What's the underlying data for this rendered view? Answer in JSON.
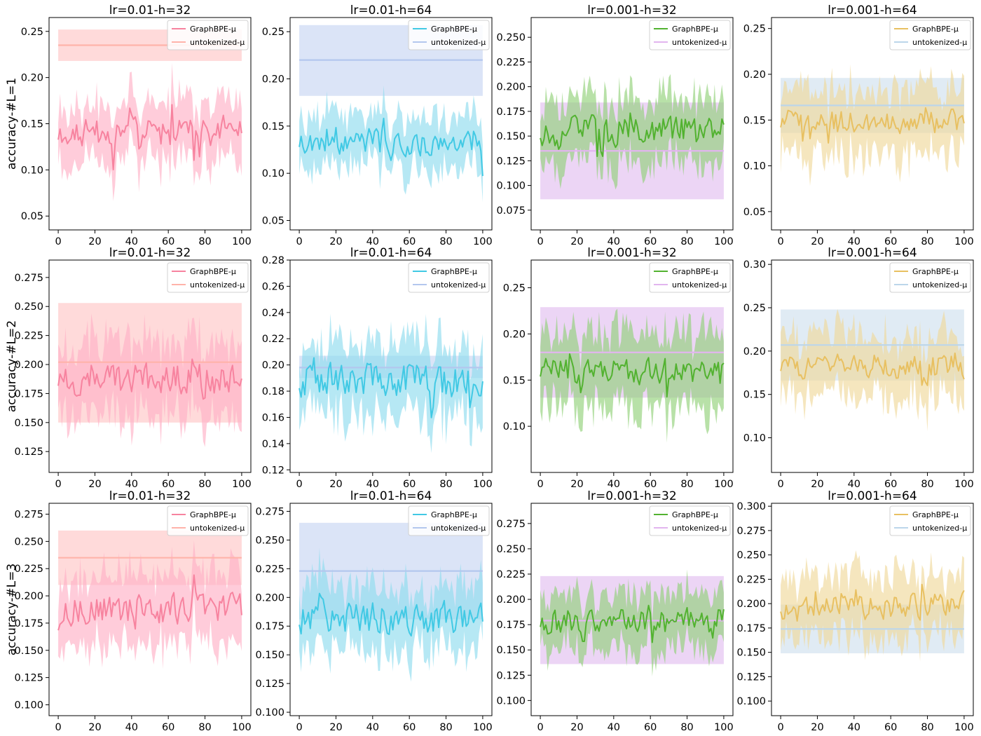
{
  "colors": {
    "pink_line": "#f7839f",
    "pink_band": "#ffb0c6",
    "pink_base_line": "#ffb3aa",
    "pink_base_band": "#ffc6c6",
    "cyan_line": "#41c9e4",
    "cyan_band": "#8fdcee",
    "blue_base_line": "#b3c7ee",
    "blue_base_band": "#c7d6f3",
    "green_line": "#52b230",
    "green_band": "#92d17a",
    "purple_base_line": "#e2b5ef",
    "purple_base_band": "#e2bff0",
    "yellow_line": "#e8c061",
    "yellow_band": "#f0d99b",
    "lightblue_base_line": "#bcd6ea",
    "lightblue_base_band": "#cfe0ee"
  },
  "chart_data": [
    {
      "type": "line",
      "title": "lr=0.01-h=32",
      "ylabel": "accuracy-#L=1",
      "xlim": [
        -5,
        105
      ],
      "ylim": [
        0.035,
        0.265
      ],
      "yticks": [
        0.05,
        0.1,
        0.15,
        0.2,
        0.25
      ],
      "ytick_labels": [
        "0.05",
        "0.10",
        "0.15",
        "0.20",
        "0.25"
      ],
      "xticks": [
        0,
        20,
        40,
        60,
        80,
        100
      ],
      "xtick_labels": [
        "0",
        "20",
        "40",
        "60",
        "80",
        "100"
      ],
      "series": [
        {
          "name": "GraphBPE-μ",
          "mean": 0.14,
          "spread": 0.014,
          "band": 0.035,
          "seed": 11,
          "line_color": "#f7839f",
          "band_color": "#ffb0c6"
        }
      ],
      "baseline": {
        "name": "untokenized-μ",
        "value": 0.235,
        "lower": 0.218,
        "upper": 0.252,
        "line_color": "#ffb3aa",
        "band_color": "#ffc6c6"
      }
    },
    {
      "type": "line",
      "title": "lr=0.01-h=64",
      "ylabel": "",
      "xlim": [
        -5,
        105
      ],
      "ylim": [
        0.04,
        0.265
      ],
      "yticks": [
        0.05,
        0.1,
        0.15,
        0.2,
        0.25
      ],
      "ytick_labels": [
        "0.05",
        "0.10",
        "0.15",
        "0.20",
        "0.25"
      ],
      "xticks": [
        0,
        20,
        40,
        60,
        80,
        100
      ],
      "xtick_labels": [
        "0",
        "20",
        "40",
        "60",
        "80",
        "100"
      ],
      "series": [
        {
          "name": "GraphBPE-μ",
          "mean": 0.135,
          "spread": 0.014,
          "band": 0.03,
          "seed": 23,
          "line_color": "#41c9e4",
          "band_color": "#8fdcee"
        }
      ],
      "baseline": {
        "name": "untokenized-μ",
        "value": 0.22,
        "lower": 0.182,
        "upper": 0.257,
        "line_color": "#b3c7ee",
        "band_color": "#c7d6f3"
      }
    },
    {
      "type": "line",
      "title": "lr=0.001-h=32",
      "ylabel": "",
      "xlim": [
        -5,
        105
      ],
      "ylim": [
        0.055,
        0.27
      ],
      "yticks": [
        0.075,
        0.1,
        0.125,
        0.15,
        0.175,
        0.2,
        0.225,
        0.25
      ],
      "ytick_labels": [
        "0.075",
        "0.100",
        "0.125",
        "0.150",
        "0.175",
        "0.200",
        "0.225",
        "0.250"
      ],
      "xticks": [
        0,
        20,
        40,
        60,
        80,
        100
      ],
      "xtick_labels": [
        "0",
        "20",
        "40",
        "60",
        "80",
        "100"
      ],
      "series": [
        {
          "name": "GraphBPE-μ",
          "mean": 0.155,
          "spread": 0.014,
          "band": 0.035,
          "seed": 37,
          "line_color": "#52b230",
          "band_color": "#92d17a"
        }
      ],
      "baseline": {
        "name": "untokenized-μ",
        "value": 0.135,
        "lower": 0.086,
        "upper": 0.184,
        "line_color": "#e2b5ef",
        "band_color": "#e2bff0"
      }
    },
    {
      "type": "line",
      "title": "lr=0.001-h=64",
      "ylabel": "",
      "xlim": [
        -5,
        105
      ],
      "ylim": [
        0.03,
        0.262
      ],
      "yticks": [
        0.05,
        0.1,
        0.15,
        0.2,
        0.25
      ],
      "ytick_labels": [
        "0.05",
        "0.10",
        "0.15",
        "0.20",
        "0.25"
      ],
      "xticks": [
        0,
        20,
        40,
        60,
        80,
        100
      ],
      "xtick_labels": [
        "0",
        "20",
        "40",
        "60",
        "80",
        "100"
      ],
      "series": [
        {
          "name": "GraphBPE-μ",
          "mean": 0.148,
          "spread": 0.012,
          "band": 0.04,
          "seed": 41,
          "line_color": "#e8c061",
          "band_color": "#f0d99b"
        }
      ],
      "baseline": {
        "name": "untokenized-μ",
        "value": 0.166,
        "lower": 0.136,
        "upper": 0.196,
        "line_color": "#bcd6ea",
        "band_color": "#cfe0ee"
      }
    },
    {
      "type": "line",
      "title": "lr=0.01-h=32",
      "ylabel": "accuracy-#L=2",
      "xlim": [
        -5,
        105
      ],
      "ylim": [
        0.107,
        0.29
      ],
      "yticks": [
        0.125,
        0.15,
        0.175,
        0.2,
        0.225,
        0.25,
        0.275
      ],
      "ytick_labels": [
        "0.125",
        "0.150",
        "0.175",
        "0.200",
        "0.225",
        "0.250",
        "0.275"
      ],
      "xticks": [
        0,
        20,
        40,
        60,
        80,
        100
      ],
      "xtick_labels": [
        "0",
        "20",
        "40",
        "60",
        "80",
        "100"
      ],
      "series": [
        {
          "name": "GraphBPE-μ",
          "mean": 0.188,
          "spread": 0.013,
          "band": 0.035,
          "seed": 53,
          "line_color": "#f7839f",
          "band_color": "#ffb0c6"
        }
      ],
      "baseline": {
        "name": "untokenized-μ",
        "value": 0.202,
        "lower": 0.15,
        "upper": 0.253,
        "line_color": "#ffb3aa",
        "band_color": "#ffc6c6"
      }
    },
    {
      "type": "line",
      "title": "lr=0.01-h=64",
      "ylabel": "",
      "xlim": [
        -5,
        105
      ],
      "ylim": [
        0.118,
        0.28
      ],
      "yticks": [
        0.12,
        0.14,
        0.16,
        0.18,
        0.2,
        0.22,
        0.24,
        0.26,
        0.28
      ],
      "ytick_labels": [
        "0.12",
        "0.14",
        "0.16",
        "0.18",
        "0.20",
        "0.22",
        "0.24",
        "0.26",
        "0.28"
      ],
      "xticks": [
        0,
        20,
        40,
        60,
        80,
        100
      ],
      "xtick_labels": [
        "0",
        "20",
        "40",
        "60",
        "80",
        "100"
      ],
      "series": [
        {
          "name": "GraphBPE-μ",
          "mean": 0.188,
          "spread": 0.012,
          "band": 0.03,
          "seed": 67,
          "line_color": "#41c9e4",
          "band_color": "#8fdcee"
        }
      ],
      "baseline": {
        "name": "untokenized-μ",
        "value": 0.198,
        "lower": 0.19,
        "upper": 0.207,
        "line_color": "#b3c7ee",
        "band_color": "#c7d6f3"
      }
    },
    {
      "type": "line",
      "title": "lr=0.001-h=32",
      "ylabel": "",
      "xlim": [
        -5,
        105
      ],
      "ylim": [
        0.05,
        0.28
      ],
      "yticks": [
        0.1,
        0.15,
        0.2,
        0.25
      ],
      "ytick_labels": [
        "0.10",
        "0.15",
        "0.20",
        "0.25"
      ],
      "xticks": [
        0,
        20,
        40,
        60,
        80,
        100
      ],
      "xtick_labels": [
        "0",
        "20",
        "40",
        "60",
        "80",
        "100"
      ],
      "series": [
        {
          "name": "GraphBPE-μ",
          "mean": 0.16,
          "spread": 0.013,
          "band": 0.045,
          "seed": 71,
          "line_color": "#52b230",
          "band_color": "#92d17a"
        }
      ],
      "baseline": {
        "name": "untokenized-μ",
        "value": 0.18,
        "lower": 0.131,
        "upper": 0.229,
        "line_color": "#e2b5ef",
        "band_color": "#e2bff0"
      }
    },
    {
      "type": "line",
      "title": "lr=0.001-h=64",
      "ylabel": "",
      "xlim": [
        -5,
        105
      ],
      "ylim": [
        0.06,
        0.305
      ],
      "yticks": [
        0.1,
        0.15,
        0.2,
        0.25,
        0.3
      ],
      "ytick_labels": [
        "0.10",
        "0.15",
        "0.20",
        "0.25",
        "0.30"
      ],
      "xticks": [
        0,
        20,
        40,
        60,
        80,
        100
      ],
      "xtick_labels": [
        "0",
        "20",
        "40",
        "60",
        "80",
        "100"
      ],
      "series": [
        {
          "name": "GraphBPE-μ",
          "mean": 0.183,
          "spread": 0.013,
          "band": 0.04,
          "seed": 83,
          "line_color": "#e8c061",
          "band_color": "#f0d99b"
        }
      ],
      "baseline": {
        "name": "untokenized-μ",
        "value": 0.207,
        "lower": 0.166,
        "upper": 0.248,
        "line_color": "#bcd6ea",
        "band_color": "#cfe0ee"
      }
    },
    {
      "type": "line",
      "title": "lr=0.01-h=32",
      "ylabel": "accuracy-#L=3",
      "xlim": [
        -5,
        105
      ],
      "ylim": [
        0.09,
        0.285
      ],
      "yticks": [
        0.1,
        0.125,
        0.15,
        0.175,
        0.2,
        0.225,
        0.25,
        0.275
      ],
      "ytick_labels": [
        "0.100",
        "0.125",
        "0.150",
        "0.175",
        "0.200",
        "0.225",
        "0.250",
        "0.275"
      ],
      "xticks": [
        0,
        20,
        40,
        60,
        80,
        100
      ],
      "xtick_labels": [
        "0",
        "20",
        "40",
        "60",
        "80",
        "100"
      ],
      "series": [
        {
          "name": "GraphBPE-μ",
          "mean": 0.188,
          "spread": 0.013,
          "band": 0.035,
          "seed": 97,
          "line_color": "#f7839f",
          "band_color": "#ffb0c6"
        }
      ],
      "baseline": {
        "name": "untokenized-μ",
        "value": 0.235,
        "lower": 0.21,
        "upper": 0.26,
        "line_color": "#ffb3aa",
        "band_color": "#ffc6c6"
      }
    },
    {
      "type": "line",
      "title": "lr=0.01-h=64",
      "ylabel": "",
      "xlim": [
        -5,
        105
      ],
      "ylim": [
        0.097,
        0.282
      ],
      "yticks": [
        0.1,
        0.125,
        0.15,
        0.175,
        0.2,
        0.225,
        0.25,
        0.275
      ],
      "ytick_labels": [
        "0.100",
        "0.125",
        "0.150",
        "0.175",
        "0.200",
        "0.225",
        "0.250",
        "0.275"
      ],
      "xticks": [
        0,
        20,
        40,
        60,
        80,
        100
      ],
      "xtick_labels": [
        "0",
        "20",
        "40",
        "60",
        "80",
        "100"
      ],
      "series": [
        {
          "name": "GraphBPE-μ",
          "mean": 0.182,
          "spread": 0.013,
          "band": 0.03,
          "seed": 103,
          "line_color": "#41c9e4",
          "band_color": "#8fdcee"
        }
      ],
      "baseline": {
        "name": "untokenized-μ",
        "value": 0.223,
        "lower": 0.181,
        "upper": 0.265,
        "line_color": "#b3c7ee",
        "band_color": "#c7d6f3"
      }
    },
    {
      "type": "line",
      "title": "lr=0.001-h=32",
      "ylabel": "",
      "xlim": [
        -5,
        105
      ],
      "ylim": [
        0.085,
        0.295
      ],
      "yticks": [
        0.1,
        0.125,
        0.15,
        0.175,
        0.2,
        0.225,
        0.25,
        0.275
      ],
      "ytick_labels": [
        "0.100",
        "0.125",
        "0.150",
        "0.175",
        "0.200",
        "0.225",
        "0.250",
        "0.275"
      ],
      "xticks": [
        0,
        20,
        40,
        60,
        80,
        100
      ],
      "xtick_labels": [
        "0",
        "20",
        "40",
        "60",
        "80",
        "100"
      ],
      "series": [
        {
          "name": "GraphBPE-μ",
          "mean": 0.178,
          "spread": 0.012,
          "band": 0.03,
          "seed": 113,
          "line_color": "#52b230",
          "band_color": "#92d17a"
        }
      ],
      "baseline": {
        "name": "untokenized-μ",
        "value": 0.179,
        "lower": 0.136,
        "upper": 0.223,
        "line_color": "#e2b5ef",
        "band_color": "#e2bff0"
      }
    },
    {
      "type": "line",
      "title": "lr=0.001-h=64",
      "ylabel": "",
      "xlim": [
        -5,
        105
      ],
      "ylim": [
        0.085,
        0.303
      ],
      "yticks": [
        0.1,
        0.125,
        0.15,
        0.175,
        0.2,
        0.225,
        0.25,
        0.275,
        0.3
      ],
      "ytick_labels": [
        "0.100",
        "0.125",
        "0.150",
        "0.175",
        "0.200",
        "0.225",
        "0.250",
        "0.275",
        "0.300"
      ],
      "xticks": [
        0,
        20,
        40,
        60,
        80,
        100
      ],
      "xtick_labels": [
        "0",
        "20",
        "40",
        "60",
        "80",
        "100"
      ],
      "series": [
        {
          "name": "GraphBPE-μ",
          "mean": 0.197,
          "spread": 0.012,
          "band": 0.035,
          "seed": 127,
          "line_color": "#e8c061",
          "band_color": "#f0d99b"
        }
      ],
      "baseline": {
        "name": "untokenized-μ",
        "value": 0.174,
        "lower": 0.149,
        "upper": 0.199,
        "line_color": "#bcd6ea",
        "band_color": "#cfe0ee"
      }
    }
  ]
}
